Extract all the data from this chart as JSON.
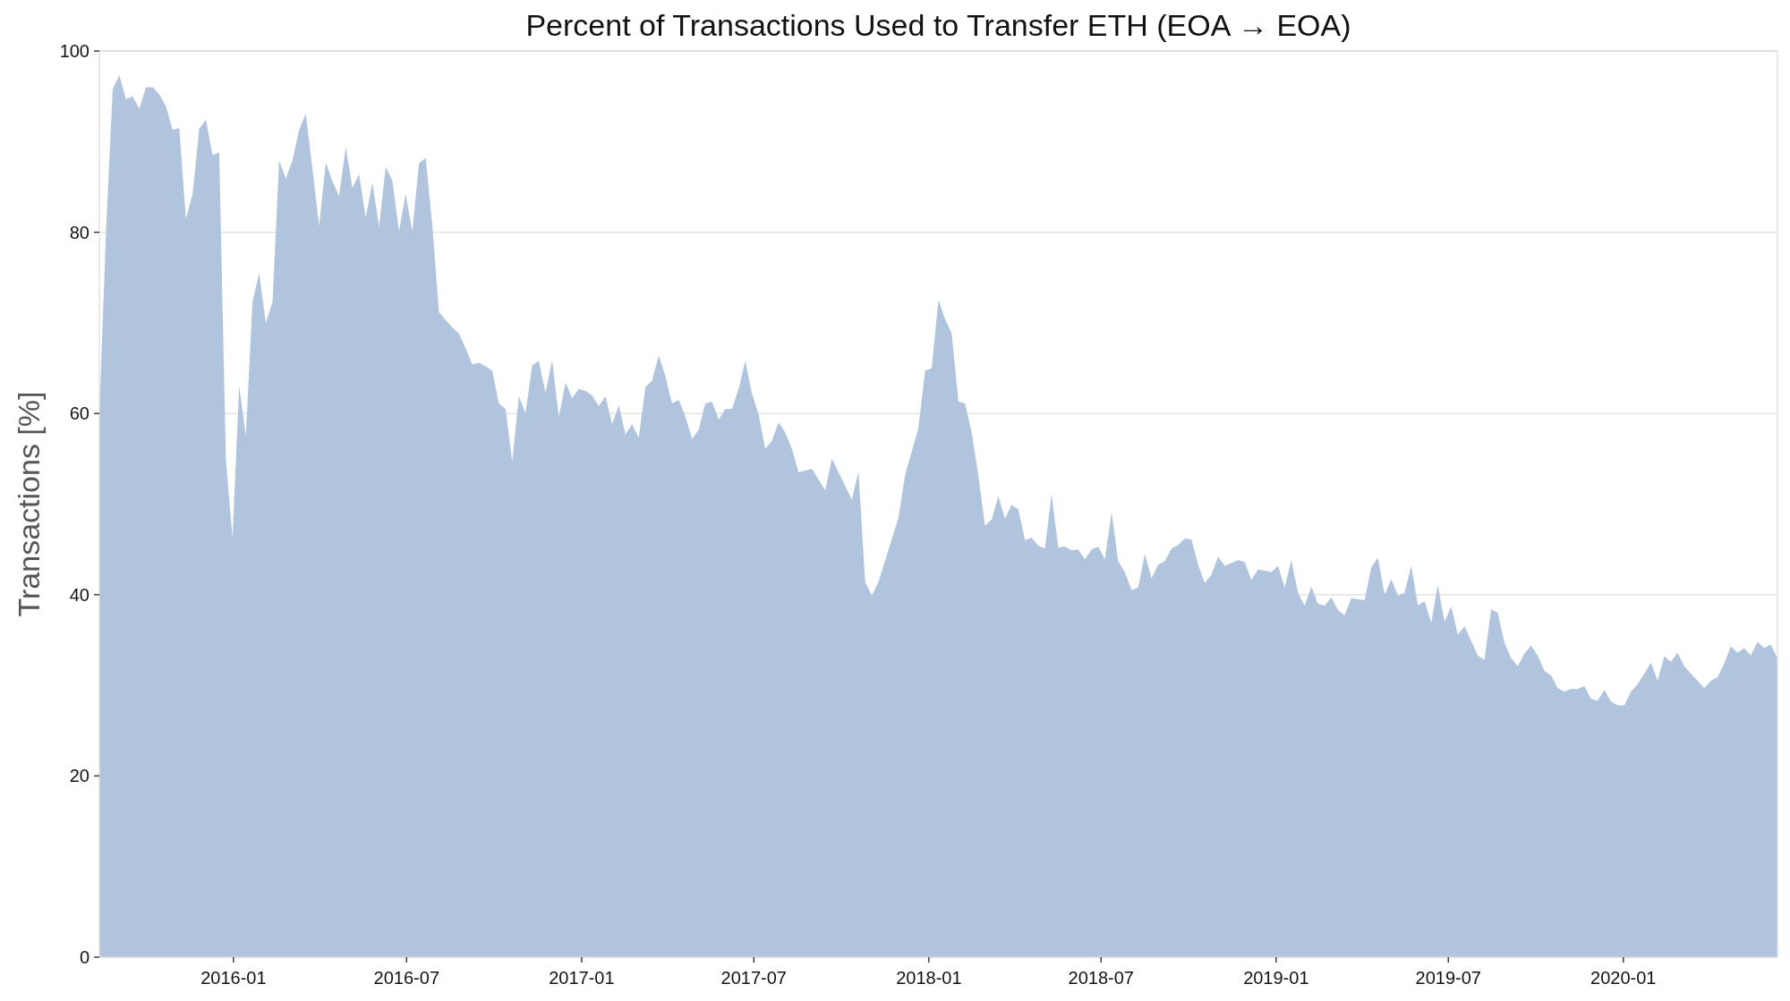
{
  "chart_data": {
    "type": "area",
    "title": "Percent of Transactions Used to Transfer ETH (EOA → EOA)",
    "ylabel": "Transactions [%]",
    "x": [
      "2015-08-13",
      "2015-08-20",
      "2015-08-27",
      "2015-09-03",
      "2015-09-10",
      "2015-09-17",
      "2015-09-24",
      "2015-10-01",
      "2015-10-08",
      "2015-10-15",
      "2015-10-22",
      "2015-10-29",
      "2015-11-05",
      "2015-11-12",
      "2015-11-19",
      "2015-11-26",
      "2015-12-03",
      "2015-12-10",
      "2015-12-17",
      "2015-12-24",
      "2015-12-31",
      "2016-01-07",
      "2016-01-14",
      "2016-01-21",
      "2016-01-28",
      "2016-02-04",
      "2016-02-11",
      "2016-02-18",
      "2016-02-25",
      "2016-03-03",
      "2016-03-10",
      "2016-03-17",
      "2016-03-24",
      "2016-03-31",
      "2016-04-07",
      "2016-04-14",
      "2016-04-21",
      "2016-04-28",
      "2016-05-05",
      "2016-05-12",
      "2016-05-19",
      "2016-05-26",
      "2016-06-02",
      "2016-06-09",
      "2016-06-16",
      "2016-06-23",
      "2016-06-30",
      "2016-07-07",
      "2016-07-14",
      "2016-07-21",
      "2016-07-28",
      "2016-08-04",
      "2016-08-11",
      "2016-08-18",
      "2016-08-25",
      "2016-09-01",
      "2016-09-08",
      "2016-09-15",
      "2016-09-22",
      "2016-09-29",
      "2016-10-06",
      "2016-10-13",
      "2016-10-20",
      "2016-10-27",
      "2016-11-03",
      "2016-11-10",
      "2016-11-17",
      "2016-11-24",
      "2016-12-01",
      "2016-12-08",
      "2016-12-15",
      "2016-12-22",
      "2016-12-29",
      "2017-01-05",
      "2017-01-12",
      "2017-01-19",
      "2017-01-26",
      "2017-02-02",
      "2017-02-09",
      "2017-02-16",
      "2017-02-23",
      "2017-03-02",
      "2017-03-09",
      "2017-03-16",
      "2017-03-23",
      "2017-03-30",
      "2017-04-06",
      "2017-04-13",
      "2017-04-20",
      "2017-04-27",
      "2017-05-04",
      "2017-05-11",
      "2017-05-18",
      "2017-05-25",
      "2017-06-01",
      "2017-06-08",
      "2017-06-15",
      "2017-06-22",
      "2017-06-29",
      "2017-07-06",
      "2017-07-13",
      "2017-07-20",
      "2017-07-27",
      "2017-08-03",
      "2017-08-10",
      "2017-08-17",
      "2017-08-31",
      "2017-09-14",
      "2017-09-21",
      "2017-10-12",
      "2017-10-19",
      "2017-10-26",
      "2017-11-02",
      "2017-11-09",
      "2017-11-30",
      "2017-12-07",
      "2017-12-21",
      "2017-12-28",
      "2018-01-04",
      "2018-01-11",
      "2018-01-18",
      "2018-01-25",
      "2018-02-01",
      "2018-02-08",
      "2018-02-15",
      "2018-02-22",
      "2018-03-01",
      "2018-03-08",
      "2018-03-15",
      "2018-03-22",
      "2018-03-29",
      "2018-04-05",
      "2018-04-12",
      "2018-04-19",
      "2018-04-26",
      "2018-05-03",
      "2018-05-10",
      "2018-05-17",
      "2018-05-24",
      "2018-05-31",
      "2018-06-07",
      "2018-06-14",
      "2018-06-21",
      "2018-06-28",
      "2018-07-05",
      "2018-07-12",
      "2018-07-19",
      "2018-07-26",
      "2018-08-02",
      "2018-08-09",
      "2018-08-16",
      "2018-08-23",
      "2018-08-30",
      "2018-09-06",
      "2018-09-13",
      "2018-09-20",
      "2018-09-27",
      "2018-10-04",
      "2018-10-11",
      "2018-10-18",
      "2018-10-25",
      "2018-11-01",
      "2018-11-08",
      "2018-11-22",
      "2018-11-29",
      "2018-12-06",
      "2018-12-13",
      "2018-12-27",
      "2019-01-03",
      "2019-01-10",
      "2019-01-17",
      "2019-01-24",
      "2019-01-31",
      "2019-02-07",
      "2019-02-14",
      "2019-02-21",
      "2019-02-28",
      "2019-03-07",
      "2019-03-14",
      "2019-03-21",
      "2019-04-04",
      "2019-04-11",
      "2019-04-18",
      "2019-04-25",
      "2019-05-02",
      "2019-05-09",
      "2019-05-16",
      "2019-05-23",
      "2019-05-30",
      "2019-06-06",
      "2019-06-13",
      "2019-06-20",
      "2019-06-27",
      "2019-07-04",
      "2019-07-11",
      "2019-07-18",
      "2019-08-01",
      "2019-08-08",
      "2019-08-15",
      "2019-08-22",
      "2019-08-29",
      "2019-09-05",
      "2019-09-12",
      "2019-09-19",
      "2019-09-26",
      "2019-10-03",
      "2019-10-10",
      "2019-10-17",
      "2019-10-24",
      "2019-10-31",
      "2019-11-07",
      "2019-11-14",
      "2019-11-21",
      "2019-11-28",
      "2019-12-05",
      "2019-12-12",
      "2019-12-19",
      "2019-12-26",
      "2020-01-02",
      "2020-01-09",
      "2020-01-16",
      "2020-01-23",
      "2020-01-30",
      "2020-02-06",
      "2020-02-13",
      "2020-02-20",
      "2020-02-27",
      "2020-03-05",
      "2020-03-12",
      "2020-03-26",
      "2020-04-02",
      "2020-04-09",
      "2020-04-16",
      "2020-04-23",
      "2020-04-30",
      "2020-05-07",
      "2020-05-14",
      "2020-05-21",
      "2020-05-28",
      "2020-06-04",
      "2020-06-11"
    ],
    "series": [
      {
        "color": "#b0c4de",
        "values": [
          60,
          80,
          95.8,
          97.3,
          94.7,
          95,
          93.6,
          96,
          96,
          95.2,
          93.9,
          91.3,
          91.5,
          81.5,
          84.2,
          91.4,
          92.4,
          88.5,
          88.8,
          54.9,
          46.3,
          63,
          57.5,
          72.3,
          75.5,
          70,
          72.3,
          87.9,
          85.9,
          87.9,
          91.3,
          93.1,
          87,
          80.7,
          87.7,
          85.6,
          84,
          89.4,
          84.9,
          86.4,
          81.6,
          85.5,
          80.6,
          87.2,
          85.7,
          80.1,
          84.2,
          80.1,
          87.6,
          88.2,
          80.8,
          71.2,
          70.3,
          69.5,
          68.8,
          67.2,
          65.4,
          65.6,
          65.2,
          64.7,
          61.1,
          60.5,
          54.7,
          61.9,
          60,
          65.3,
          65.8,
          62.3,
          65.9,
          59.6,
          63.4,
          61.7,
          62.7,
          62.5,
          62,
          60.8,
          61.9,
          58.8,
          60.9,
          57.7,
          58.8,
          57.3,
          62.9,
          63.6,
          66.4,
          64.1,
          61.1,
          61.5,
          59.7,
          57.2,
          58.2,
          61.1,
          61.3,
          59.3,
          60.5,
          60.5,
          62.7,
          65.8,
          62.2,
          59.9,
          56.1,
          57,
          59,
          57.9,
          56.1,
          53.5,
          53.9,
          51.5,
          55,
          50.5,
          53.6,
          41.4,
          39.9,
          41.4,
          48.5,
          53.2,
          58.4,
          64.7,
          65,
          72.5,
          70.4,
          68.8,
          61.3,
          61.1,
          57.9,
          53.1,
          47.6,
          48.3,
          50.9,
          48.4,
          49.9,
          49.4,
          46,
          46.3,
          45.4,
          45.1,
          51.1,
          45.2,
          45.3,
          44.9,
          45,
          43.9,
          45,
          45.3,
          43.9,
          49.1,
          43.7,
          42.5,
          40.5,
          40.8,
          44.5,
          41.8,
          43.3,
          43.7,
          45.1,
          45.5,
          46.2,
          46.1,
          43.3,
          41.3,
          42.2,
          44.2,
          43.2,
          43.8,
          43.6,
          41.6,
          42.8,
          42.5,
          43.2,
          40.8,
          43.8,
          40.2,
          38.8,
          40.9,
          39,
          38.8,
          39.7,
          38.3,
          37.7,
          39.6,
          39.4,
          43,
          44.1,
          40,
          41.7,
          39.9,
          40.2,
          43.2,
          38.8,
          39.3,
          36.9,
          41.1,
          37,
          38.7,
          35.6,
          36.5,
          33.3,
          32.8,
          38.4,
          38,
          34.7,
          33,
          32.1,
          33.5,
          34.4,
          33.3,
          31.6,
          31.1,
          29.7,
          29.3,
          29.6,
          29.6,
          29.9,
          28.5,
          28.3,
          29.5,
          28.2,
          27.8,
          27.8,
          29.3,
          30.1,
          31.3,
          32.5,
          30.5,
          33.2,
          32.6,
          33.6,
          32.1,
          31.3,
          29.7,
          30.5,
          30.9,
          32.4,
          34.3,
          33.6,
          34.1,
          33.3,
          34.8,
          34.1,
          34.5,
          33
        ]
      }
    ],
    "xlim": [
      "2015-08-13",
      "2020-06-11"
    ],
    "xticks": [
      "2016-01",
      "2016-07",
      "2017-01",
      "2017-07",
      "2018-01",
      "2018-07",
      "2019-01",
      "2019-07",
      "2020-01"
    ],
    "ylim": [
      0,
      100
    ],
    "yticks": [
      0,
      20,
      40,
      60,
      80,
      100
    ],
    "grid": "y"
  }
}
